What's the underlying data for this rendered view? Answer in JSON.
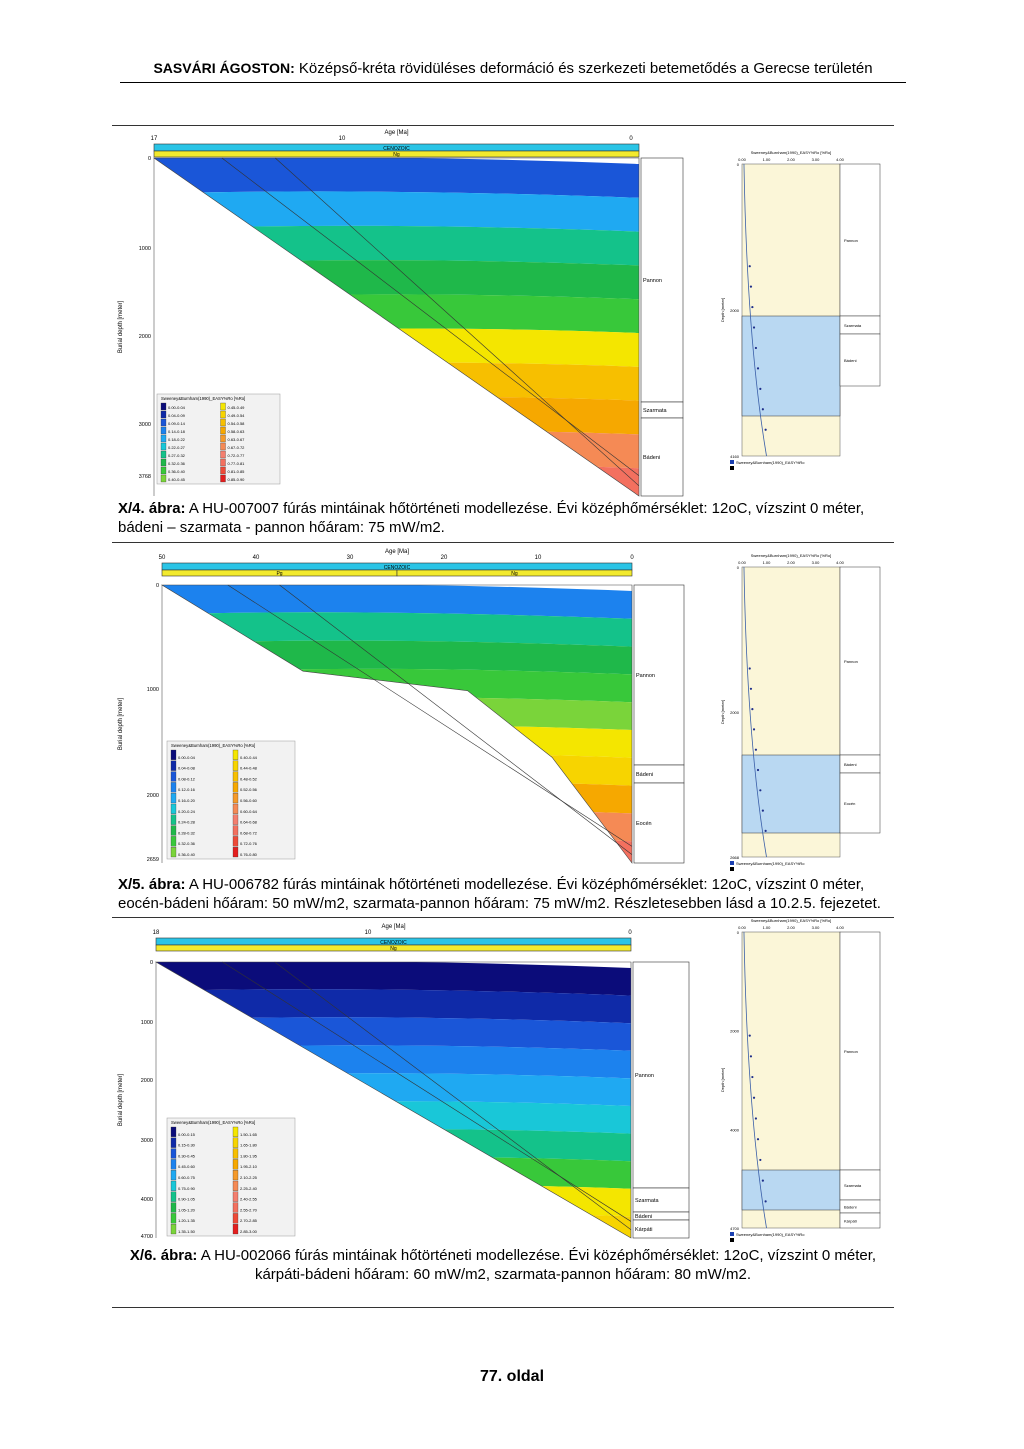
{
  "header": {
    "author": "SASVÁRI ÁGOSTON:",
    "title": "Középső-kréta rövidüléses deformáció és szerkezeti betemetődés a Gerecse területén"
  },
  "figures": [
    {
      "axis_title": "Age [Ma]",
      "ylabel": "Burial depth [meter]",
      "era_label": "CENOZOIC",
      "periods": [
        "Ng"
      ],
      "ages": [
        "17",
        "10",
        "0"
      ],
      "depths": [
        "0",
        "1000",
        "2000",
        "3000",
        "3768"
      ],
      "formations": [
        "Pannon",
        "Szarmata",
        "Bádeni"
      ],
      "legend_title": "Sweeney&Burnham(1990)_EASY%Ro [%Ro]",
      "legend_left": [
        "0.00-0.04",
        "0.04-0.09",
        "0.09-0.14",
        "0.14-0.18",
        "0.18-0.22",
        "0.22-0.27",
        "0.27-0.32",
        "0.32-0.36",
        "0.36-0.40",
        "0.40-0.45"
      ],
      "legend_right": [
        "0.45-0.49",
        "0.49-0.54",
        "0.54-0.58",
        "0.58-0.63",
        "0.63-0.67",
        "0.67-0.72",
        "0.72-0.77",
        "0.77-0.81",
        "0.81-0.85",
        "0.85-0.90"
      ],
      "side_title": "Sweeney&Burnham(1990)_EASY%Ro [%Ro]",
      "side_ticks": [
        "0.00",
        "1.00",
        "2.00",
        "3.00",
        "4.00"
      ],
      "side_ylabel": "Depth [meter]",
      "side_depths": [
        "0",
        "2000",
        "4160"
      ],
      "side_legend": "Sweeney&Burnham(1990)_EASY%Ro",
      "side_formations": [
        "Pannon",
        "Szarmata",
        "Bádeni"
      ],
      "caption_label": "X/4. ábra:",
      "caption_text": "A HU-007007 fúrás mintáinak hőtörténeti modellezése. Évi középhőmérséklet: 12oC, vízszint 0 méter, bádeni – szarmata - pannon hőáram: 75 mW/m2."
    },
    {
      "axis_title": "Age [Ma]",
      "ylabel": "Burial depth [meter]",
      "era_label": "CENOZOIC",
      "periods": [
        "Pg",
        "Ng"
      ],
      "ages": [
        "50",
        "40",
        "30",
        "20",
        "10",
        "0"
      ],
      "depths": [
        "0",
        "1000",
        "2000",
        "2659"
      ],
      "formations": [
        "Pannon",
        "Bádeni",
        "Eocén"
      ],
      "legend_title": "Sweeney&Burnham(1990)_EASY%Ro [%Ro]",
      "legend_left": [
        "0.00-0.04",
        "0.04-0.08",
        "0.08-0.12",
        "0.12-0.16",
        "0.16-0.20",
        "0.20-0.24",
        "0.24-0.28",
        "0.28-0.32",
        "0.32-0.36",
        "0.36-0.40"
      ],
      "legend_right": [
        "0.40-0.44",
        "0.44-0.48",
        "0.48-0.52",
        "0.52-0.56",
        "0.56-0.60",
        "0.60-0.64",
        "0.64-0.68",
        "0.68-0.72",
        "0.72-0.76",
        "0.76-0.80"
      ],
      "side_title": "Sweeney&Burnham(1990)_EASY%Ro [%Ro]",
      "side_ticks": [
        "0.00",
        "1.00",
        "2.00",
        "3.00",
        "4.00"
      ],
      "side_ylabel": "Depth [meter]",
      "side_depths": [
        "0",
        "2000",
        "2668"
      ],
      "side_legend": "Sweeney&Burnham(1990)_EASY%Ro",
      "side_formations": [
        "Pannon",
        "Bádeni",
        "Eocén"
      ],
      "caption_label": "X/5. ábra:",
      "caption_text": "A HU-006782 fúrás mintáinak hőtörténeti modellezése. Évi középhőmérséklet: 12oC, vízszint 0 méter, eocén-bádeni hőáram: 50 mW/m2, szarmata-pannon hőáram: 75 mW/m2. Részletesebben lásd a 10.2.5. fejezetet."
    },
    {
      "axis_title": "Age [Ma]",
      "ylabel": "Burial depth [meter]",
      "era_label": "CENOZOIC",
      "periods": [
        "Ng"
      ],
      "ages": [
        "18",
        "10",
        "0"
      ],
      "depths": [
        "0",
        "1000",
        "2000",
        "3000",
        "4000",
        "4700"
      ],
      "formations": [
        "Pannon",
        "Szarmata",
        "Bádeni",
        "Kárpáti"
      ],
      "legend_title": "Sweeney&Burnham(1990)_EASY%Ro [%Ro]",
      "legend_left": [
        "0.00-0.15",
        "0.15-0.30",
        "0.30-0.45",
        "0.45-0.60",
        "0.60-0.75",
        "0.75-0.90",
        "0.90-1.05",
        "1.05-1.20",
        "1.20-1.35",
        "1.35-1.50"
      ],
      "legend_right": [
        "1.50-1.65",
        "1.65-1.80",
        "1.80-1.95",
        "1.95-2.10",
        "2.10-2.25",
        "2.25-2.40",
        "2.40-2.55",
        "2.55-2.70",
        "2.70-2.85",
        "2.85-3.00"
      ],
      "side_title": "Sweeney&Burnham(1990)_EASY%Ro [%Ro]",
      "side_ticks": [
        "0.00",
        "1.00",
        "2.00",
        "3.00",
        "4.00"
      ],
      "side_ylabel": "Depth [meter]",
      "side_depths": [
        "0",
        "2000",
        "4000",
        "4700"
      ],
      "side_legend": "Sweeney&Burnham(1990)_EASY%Ro",
      "side_formations": [
        "Pannon",
        "Szarmata",
        "Bádeni",
        "Kárpáti"
      ],
      "caption_label": "X/6. ábra:",
      "caption_text": "A HU-002066 fúrás mintáinak hőtörténeti modellezése. Évi középhőmérséklet: 12oC, vízszint 0 méter, kárpáti-bádeni hőáram: 60 mW/m2, szarmata-pannon hőáram: 80 mW/m2."
    }
  ],
  "page_number": "77. oldal",
  "colors": {
    "ramp": [
      "#0b0c7a",
      "#0f2aa8",
      "#1a56d8",
      "#1c82ee",
      "#1fa9f2",
      "#19c7d8",
      "#14c28a",
      "#1fb84a",
      "#38c83a",
      "#7ad43a",
      "#f4e600",
      "#f7d400",
      "#f7bf00",
      "#f6a800",
      "#f59a2a",
      "#f58a55",
      "#f47e6e",
      "#f3705f",
      "#ee4a38",
      "#e41e1e"
    ],
    "side_panel": "#fbf6d8",
    "side_hatch": "#b9d8f2",
    "era_bar": "#2ac4e6",
    "period_bar": "#f2ea2e",
    "curve": "#3a5fa8",
    "point": "#1e2e8a"
  }
}
